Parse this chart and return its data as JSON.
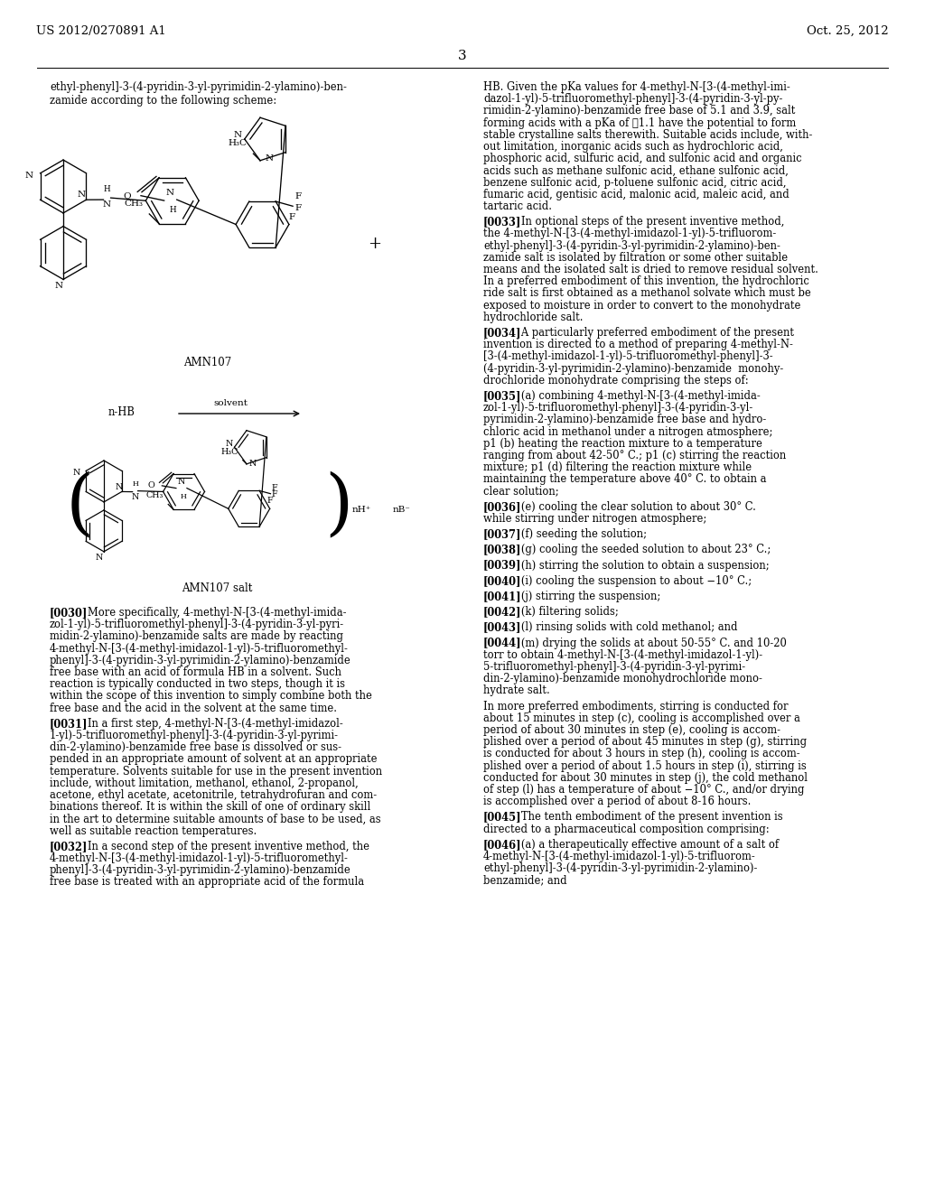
{
  "page_bg": "#ffffff",
  "header_left": "US 2012/0270891 A1",
  "header_right": "Oct. 25, 2012",
  "page_number": "3",
  "body_fontsize": 8.3,
  "left_intro": "ethyl-phenyl]-3-(4-pyridin-3-yl-pyrimidin-2-ylamino)-ben-\nzamide according to the following scheme:",
  "right_col_paragraphs": [
    "HB. Given the pKa values for 4-methyl-N-[3-(4-methyl-imi-\ndazol-1-yl)-5-trifluoromethyl-phenyl]-3-(4-pyridin-3-yl-py-\nrimidin-2-ylamino)-benzamide free base of 5.1 and 3.9, salt\nforming acids with a pKa of ≦1.1 have the potential to form\nstable crystalline salts therewith. Suitable acids include, with-\nout limitation, inorganic acids such as hydrochloric acid,\nphosphoric acid, sulfuric acid, and sulfonic acid and organic\nacids such as methane sulfonic acid, ethane sulfonic acid,\nbenzene sulfonic acid, p-toluene sulfonic acid, citric acid,\nfumaric acid, gentisic acid, malonic acid, maleic acid, and\ntartaric acid.",
    "[0033]   In optional steps of the present inventive method,\nthe 4-methyl-N-[3-(4-methyl-imidazol-1-yl)-5-trifluorom-\nethyl-phenyl]-3-(4-pyridin-3-yl-pyrimidin-2-ylamino)-ben-\nzamide salt is isolated by filtration or some other suitable\nmeans and the isolated salt is dried to remove residual solvent.\nIn a preferred embodiment of this invention, the hydrochloric\nride salt is first obtained as a methanol solvate which must be\nexposed to moisture in order to convert to the monohydrate\nhydrochloride salt.",
    "[0034]   A particularly preferred embodiment of the present\ninvention is directed to a method of preparing 4-methyl-N-\n[3-(4-methyl-imidazol-1-yl)-5-trifluoromethyl-phenyl]-3-\n(4-pyridin-3-yl-pyrimidin-2-ylamino)-benzamide  monohy-\ndrochloride monohydrate comprising the steps of:",
    "[0035]   (a) combining 4-methyl-N-[3-(4-methyl-imida-\nzol-1-yl)-5-trifluoromethyl-phenyl]-3-(4-pyridin-3-yl-\npyrimidin-2-ylamino)-benzamide free base and hydro-\nchloric acid in methanol under a nitrogen atmosphere;\np1 (b) heating the reaction mixture to a temperature\nranging from about 42-50° C.; p1 (c) stirring the reaction\nmixture; p1 (d) filtering the reaction mixture while\nmaintaining the temperature above 40° C. to obtain a\nclear solution;",
    "[0036]   (e) cooling the clear solution to about 30° C.\nwhile stirring under nitrogen atmosphere;",
    "[0037]   (f) seeding the solution;",
    "[0038]   (g) cooling the seeded solution to about 23° C.;",
    "[0039]   (h) stirring the solution to obtain a suspension;",
    "[0040]   (i) cooling the suspension to about −10° C.;",
    "[0041]   (j) stirring the suspension;",
    "[0042]   (k) filtering solids;",
    "[0043]   (l) rinsing solids with cold methanol; and",
    "[0044]   (m) drying the solids at about 50-55° C. and 10-20\ntorr to obtain 4-methyl-N-[3-(4-methyl-imidazol-1-yl)-\n5-trifluoromethyl-phenyl]-3-(4-pyridin-3-yl-pyrimi-\ndin-2-ylamino)-benzamide monohydrochloride mono-\nhydrate salt.",
    "In more preferred embodiments, stirring is conducted for\nabout 15 minutes in step (c), cooling is accomplished over a\nperiod of about 30 minutes in step (e), cooling is accom-\nplished over a period of about 45 minutes in step (g), stirring\nis conducted for about 3 hours in step (h), cooling is accom-\nplished over a period of about 1.5 hours in step (i), stirring is\nconducted for about 30 minutes in step (j), the cold methanol\nof step (l) has a temperature of about −10° C., and/or drying\nis accomplished over a period of about 8-16 hours.",
    "[0045]   The tenth embodiment of the present invention is\ndirected to a pharmaceutical composition comprising:",
    "[0046]   (a) a therapeutically effective amount of a salt of\n4-methyl-N-[3-(4-methyl-imidazol-1-yl)-5-trifluorom-\nethyl-phenyl]-3-(4-pyridin-3-yl-pyrimidin-2-ylamino)-\nbenzamide; and"
  ],
  "left_col_paragraphs": [
    "[0030]   More specifically, 4-methyl-N-[3-(4-methyl-imida-\nzol-1-yl)-5-trifluoromethyl-phenyl]-3-(4-pyridin-3-yl-pyri-\nmidin-2-ylamino)-benzamide salts are made by reacting\n4-methyl-N-[3-(4-methyl-imidazol-1-yl)-5-trifluoromethyl-\nphenyl]-3-(4-pyridin-3-yl-pyrimidin-2-ylamino)-benzamide\nfree base with an acid of formula HB in a solvent. Such\nreaction is typically conducted in two steps, though it is\nwithin the scope of this invention to simply combine both the\nfree base and the acid in the solvent at the same time.",
    "[0031]   In a first step, 4-methyl-N-[3-(4-methyl-imidazol-\n1-yl)-5-trifluoromethyl-phenyl]-3-(4-pyridin-3-yl-pyrimi-\ndin-2-ylamino)-benzamide free base is dissolved or sus-\npended in an appropriate amount of solvent at an appropriate\ntemperature. Solvents suitable for use in the present invention\ninclude, without limitation, methanol, ethanol, 2-propanol,\nacetone, ethyl acetate, acetonitrile, tetrahydrofuran and com-\nbinations thereof. It is within the skill of one of ordinary skill\nin the art to determine suitable amounts of base to be used, as\nwell as suitable reaction temperatures.",
    "[0032]   In a second step of the present inventive method, the\n4-methyl-N-[3-(4-methyl-imidazol-1-yl)-5-trifluoromethyl-\nphenyl]-3-(4-pyridin-3-yl-pyrimidin-2-ylamino)-benzamide\nfree base is treated with an appropriate acid of the formula"
  ]
}
